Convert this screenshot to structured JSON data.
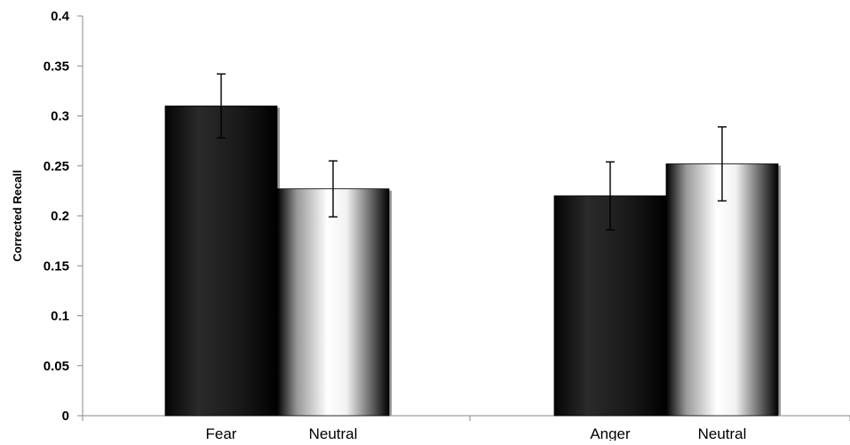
{
  "chart_data": {
    "type": "bar",
    "ylabel": "Corrected Recall",
    "ylim": [
      0,
      0.4
    ],
    "yticks": [
      "0",
      "0.05",
      "0.1",
      "0.15",
      "0.2",
      "0.25",
      "0.3",
      "0.35",
      "0.4"
    ],
    "groups": [
      {
        "bars": [
          {
            "category": "Fear",
            "value": 0.31,
            "error": 0.032,
            "style": "dark"
          },
          {
            "category": "Neutral",
            "value": 0.227,
            "error": 0.028,
            "style": "light"
          }
        ]
      },
      {
        "bars": [
          {
            "category": "Anger",
            "value": 0.22,
            "error": 0.034,
            "style": "dark"
          },
          {
            "category": "Neutral",
            "value": 0.252,
            "error": 0.037,
            "style": "light"
          }
        ]
      }
    ],
    "colors": {
      "dark_bar": "#1c1c1c",
      "light_bar": "#ffffff",
      "axis": "#888888",
      "error_bar": "#000000"
    }
  }
}
